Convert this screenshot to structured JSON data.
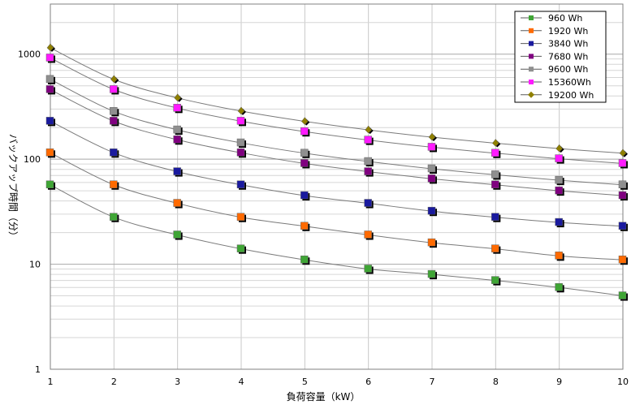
{
  "chart_data": {
    "type": "scatter",
    "title": "",
    "xlabel": "負荷容量（kW）",
    "ylabel": "バックアップ時間（分）",
    "x": [
      1,
      2,
      3,
      4,
      5,
      6,
      7,
      8,
      9,
      10
    ],
    "xlim": [
      1,
      10
    ],
    "ylim": [
      1,
      3000
    ],
    "yscale": "log",
    "x_ticks": [
      "1",
      "2",
      "3",
      "4",
      "5",
      "6",
      "7",
      "8",
      "9",
      "10"
    ],
    "y_ticks": [
      {
        "value": 1,
        "label": "1"
      },
      {
        "value": 10,
        "label": "10"
      },
      {
        "value": 100,
        "label": "100"
      },
      {
        "value": 1000,
        "label": "1000"
      }
    ],
    "grid": true,
    "legend_position": "top-right",
    "series": [
      {
        "name": "960 Wh",
        "color": "#3fa535",
        "marker": "square",
        "values": [
          57,
          28,
          19,
          14,
          11,
          9,
          8,
          7,
          6,
          5
        ]
      },
      {
        "name": "1920 Wh",
        "color": "#ff6a00",
        "marker": "square",
        "values": [
          115,
          57,
          38,
          28,
          23,
          19,
          16,
          14,
          12,
          11
        ]
      },
      {
        "name": "3840 Wh",
        "color": "#1a1a9e",
        "marker": "square",
        "values": [
          230,
          115,
          76,
          57,
          45,
          38,
          32,
          28,
          25,
          23
        ]
      },
      {
        "name": "7680 Wh",
        "color": "#800080",
        "marker": "square",
        "values": [
          460,
          230,
          153,
          115,
          91,
          76,
          65,
          57,
          50,
          45
        ]
      },
      {
        "name": "9600 Wh",
        "color": "#8f8f8f",
        "marker": "square",
        "values": [
          575,
          285,
          190,
          143,
          114,
          95,
          81,
          71,
          63,
          57
        ]
      },
      {
        "name": "15360Wh",
        "color": "#ff1aff",
        "marker": "square",
        "values": [
          920,
          460,
          306,
          230,
          183,
          152,
          130,
          114,
          101,
          91
        ]
      },
      {
        "name": "19200 Wh",
        "color": "#8f8000",
        "marker": "diamond",
        "values": [
          1150,
          575,
          383,
          287,
          229,
          190,
          162,
          142,
          126,
          114
        ]
      }
    ]
  }
}
